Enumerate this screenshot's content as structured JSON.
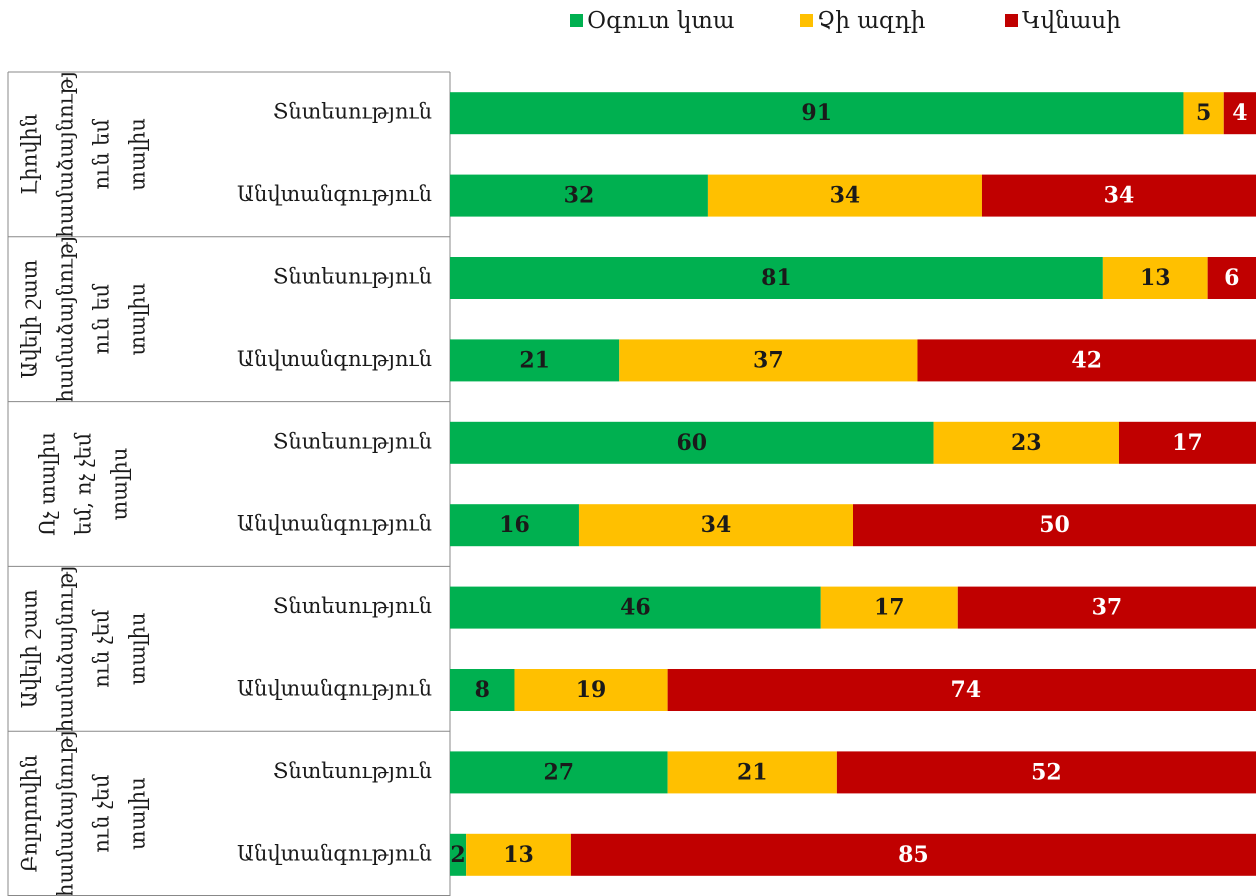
{
  "chart_data": {
    "type": "stacked-bar-horizontal",
    "groups": [
      {
        "lines": [
          "Լիովին",
          "համաձայնությ",
          "ուն եմ",
          "տալիս"
        ]
      },
      {
        "lines": [
          "Ավելի շատ",
          "համաձայնությ",
          "ուն եմ",
          "տալիս"
        ]
      },
      {
        "lines": [
          "Ոչ տալիս",
          "եմ, ոչ չեմ",
          "տալիս"
        ]
      },
      {
        "lines": [
          "Ավելի շատ",
          "համաձայնությ",
          "ուն չեմ",
          "տալիս"
        ]
      },
      {
        "lines": [
          "Բոլորովին",
          "համաձայնությ",
          "ուն չեմ",
          "տալիս"
        ]
      }
    ],
    "categories": [
      "Տնտեսություն",
      "Անվտանգություն",
      "Տնտեսություն",
      "Անվտանգություն",
      "Տնտեսություն",
      "Անվտանգություն",
      "Տնտեսություն",
      "Անվտանգություն",
      "Տնտեսություն",
      "Անվտանգություն"
    ],
    "series": [
      {
        "name": "Օգուտ կտա",
        "color": "#00b050",
        "label_color": "#1a1a1a",
        "values": [
          91,
          32,
          81,
          21,
          60,
          16,
          46,
          8,
          27,
          2
        ]
      },
      {
        "name": "Չի ազդի",
        "color": "#ffc000",
        "label_color": "#1a1a1a",
        "values": [
          5,
          34,
          13,
          37,
          23,
          34,
          17,
          19,
          21,
          13
        ]
      },
      {
        "name": "Կվնասի",
        "color": "#c00000",
        "label_color": "#ffffff",
        "values": [
          4,
          34,
          6,
          42,
          17,
          50,
          37,
          74,
          52,
          85
        ]
      }
    ],
    "xlim": [
      0,
      100
    ],
    "legend": "top"
  }
}
